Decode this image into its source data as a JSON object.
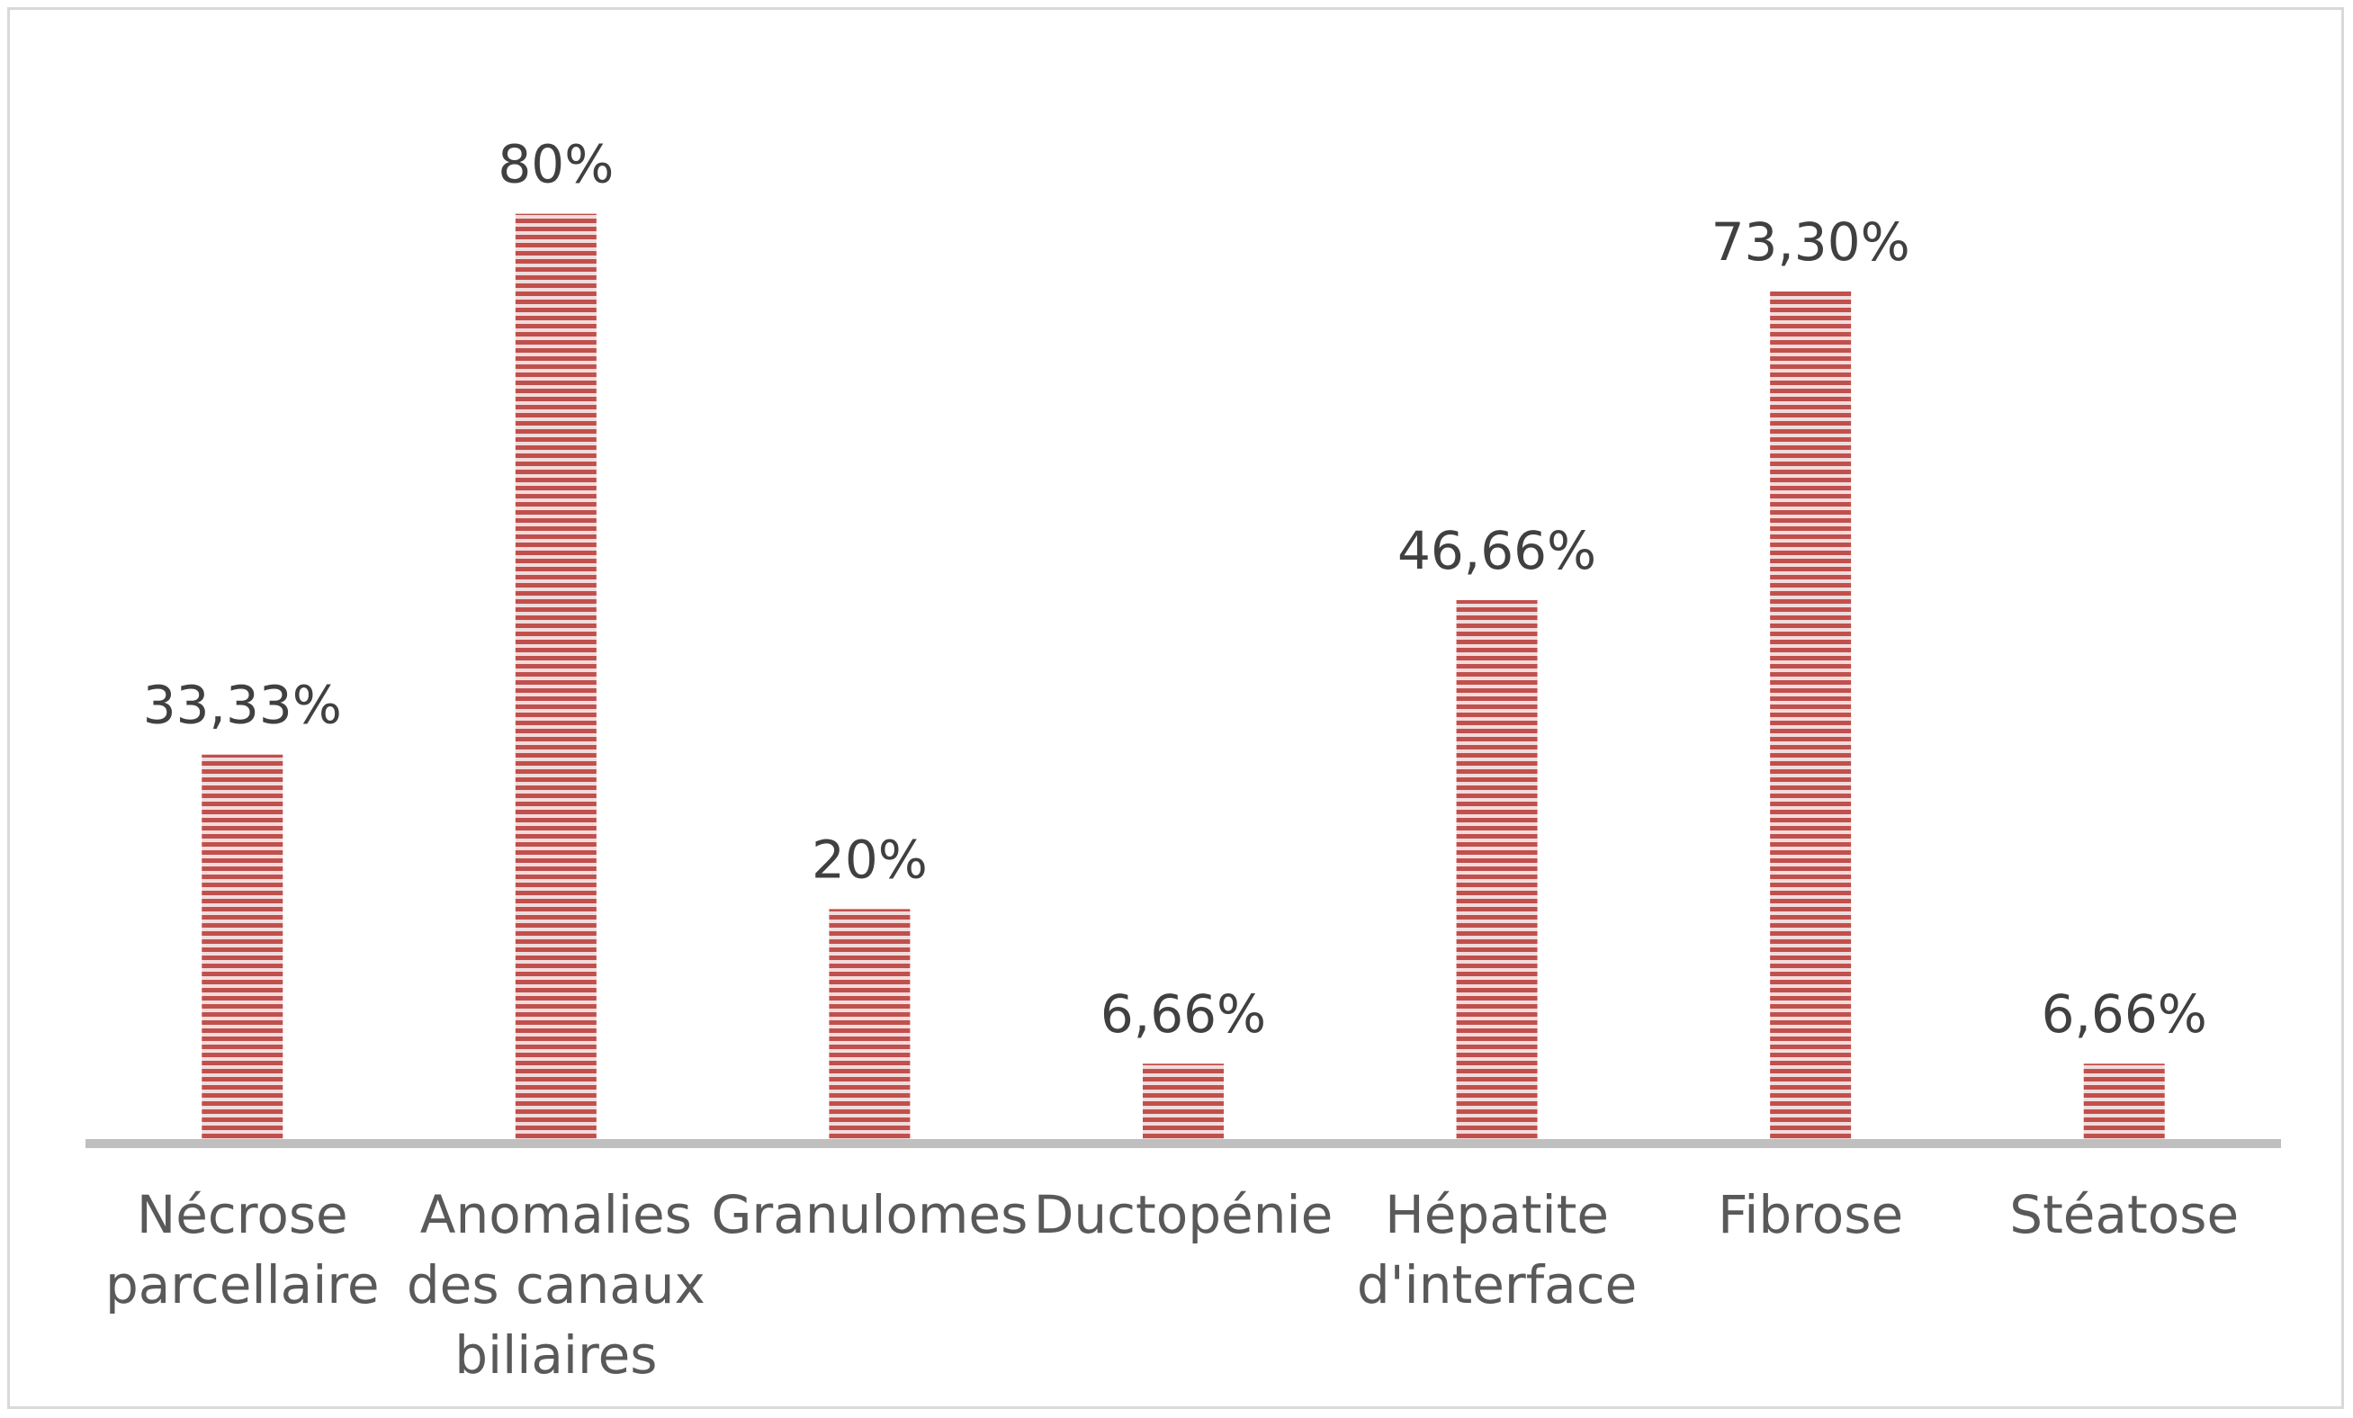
{
  "chart_data": {
    "type": "bar",
    "categories": [
      [
        "Nécrose",
        "parcellaire"
      ],
      [
        "Anomalies",
        "des canaux",
        "biliaires"
      ],
      [
        "Granulomes"
      ],
      [
        "Ductopénie"
      ],
      [
        "Hépatite",
        "d'interface"
      ],
      [
        "Fibrose"
      ],
      [
        "Stéatose"
      ]
    ],
    "values": [
      33.33,
      80,
      20,
      6.66,
      46.66,
      73.3,
      6.66
    ],
    "data_labels": [
      "33,33%",
      "80%",
      "20%",
      "6,66%",
      "46,66%",
      "73,30%",
      "6,66%"
    ],
    "title": "",
    "xlabel": "",
    "ylabel": "",
    "ylim": [
      0,
      100
    ],
    "grid": false,
    "legend": "none",
    "colors": {
      "bar_fill": "#c0504d",
      "bar_stripe_light": "#f2dcdb",
      "axis": "#bfbfbf",
      "frame": "#d9d9d9",
      "label_text": "#404040",
      "category_text": "#595959"
    }
  }
}
